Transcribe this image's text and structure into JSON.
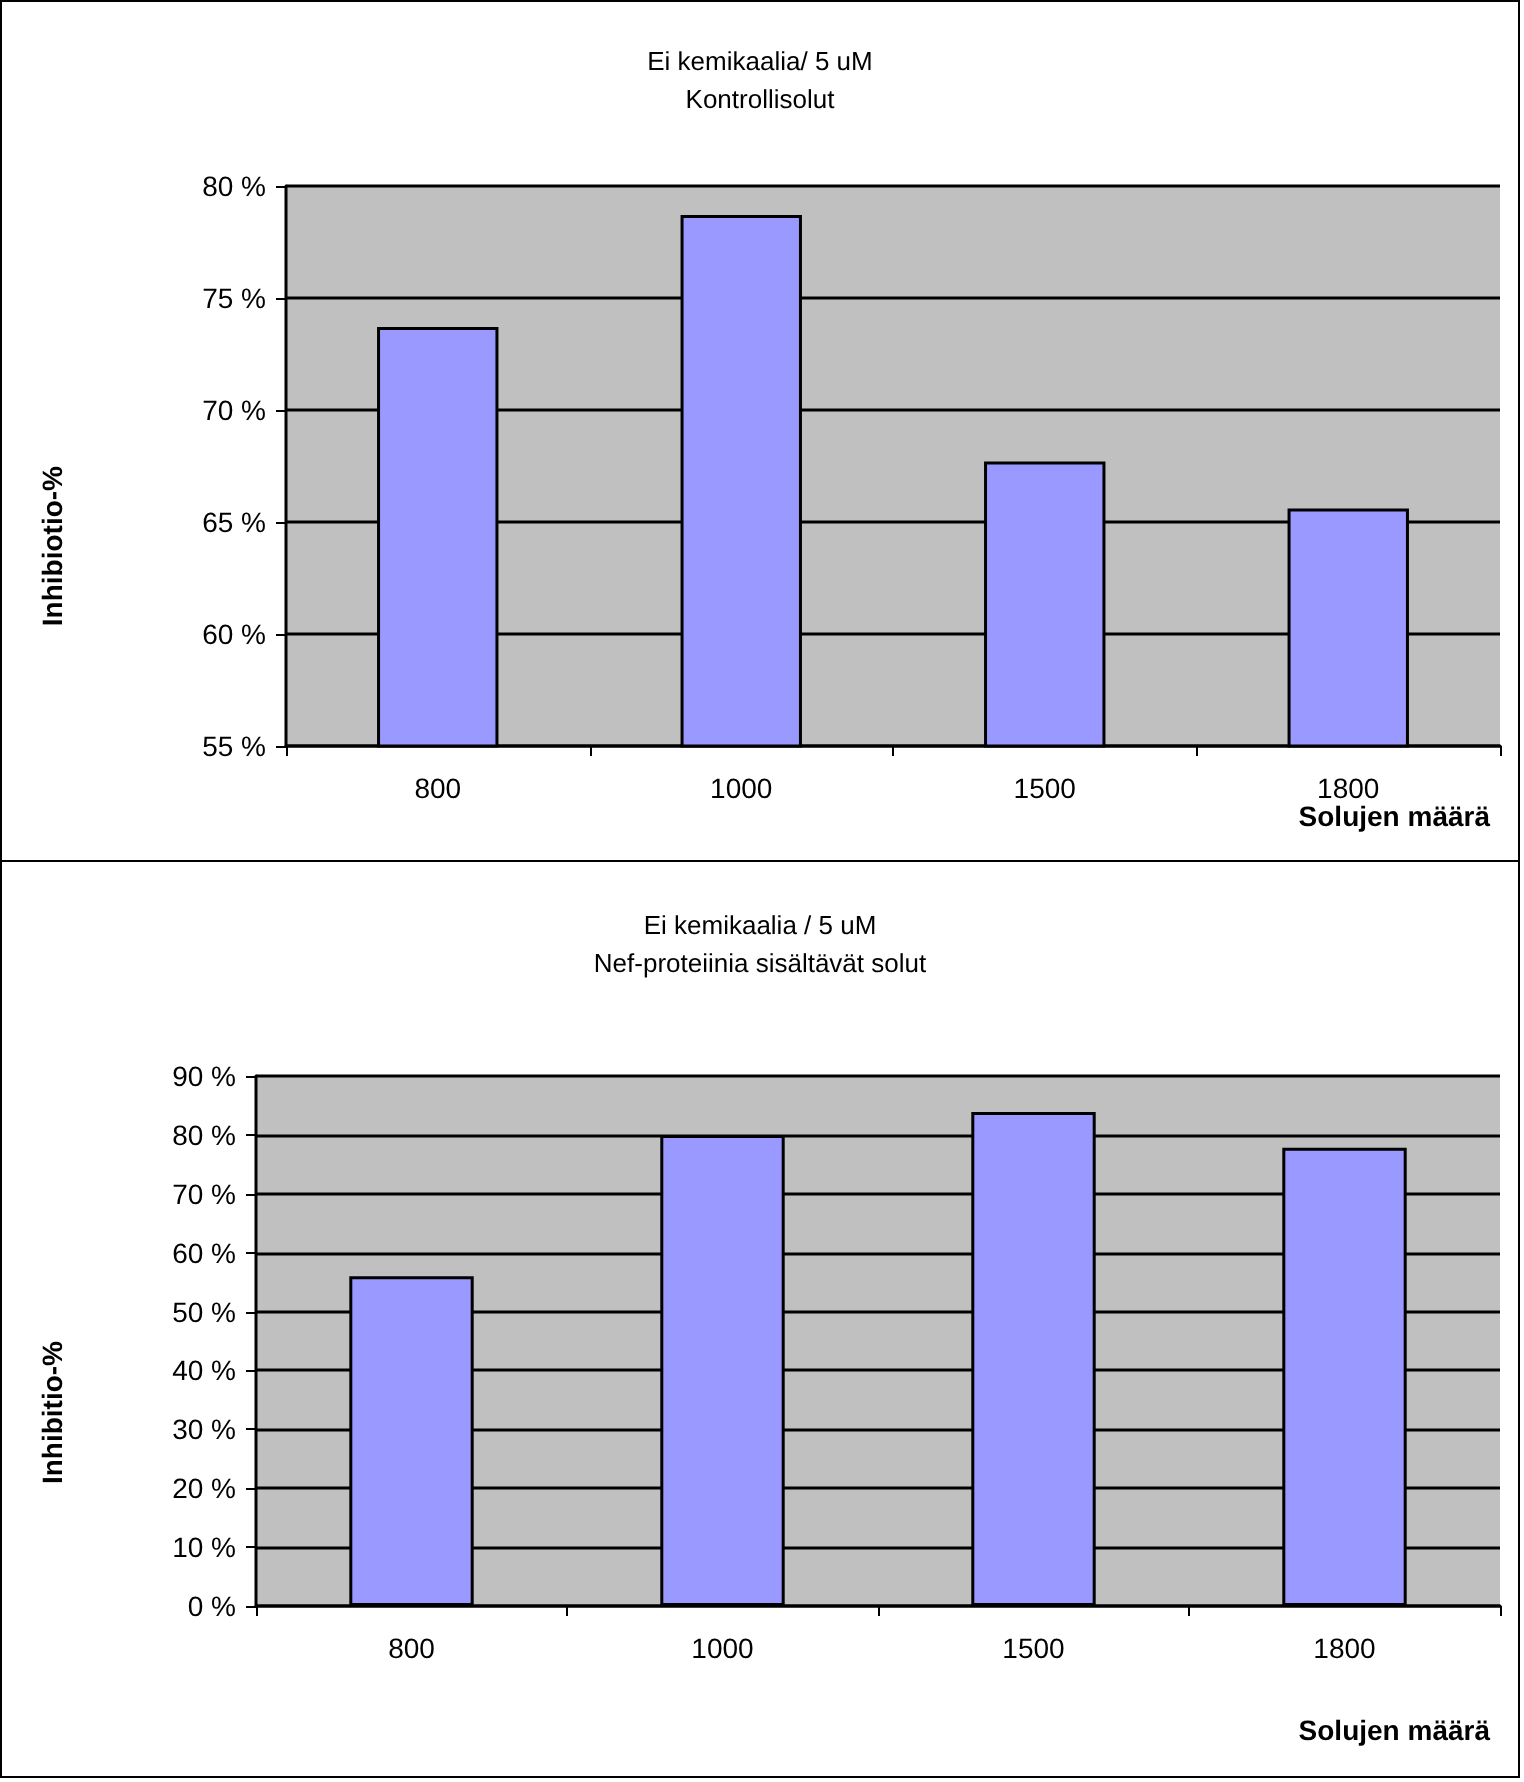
{
  "chart_data": [
    {
      "type": "bar",
      "title": "Ei kemikaalia/ 5 uM",
      "subtitle": "Kontrollisolut",
      "xlabel": "Solujen määrä",
      "ylabel": "Inhibiotio-%",
      "categories": [
        "800",
        "1000",
        "1500",
        "1800"
      ],
      "values": [
        73.7,
        78.7,
        67.7,
        65.6
      ],
      "color": "#9999ff",
      "ylim": [
        55,
        80
      ],
      "yticks": [
        {
          "value": 55,
          "label": "55 %"
        },
        {
          "value": 60,
          "label": "60 %"
        },
        {
          "value": 65,
          "label": "65 %"
        },
        {
          "value": 70,
          "label": "70 %"
        },
        {
          "value": 75,
          "label": "75 %"
        },
        {
          "value": 80,
          "label": "80 %"
        }
      ],
      "grid": "y"
    },
    {
      "type": "bar",
      "title": "Ei kemikaalia / 5 uM",
      "subtitle": "Nef-proteiinia sisältävät solut",
      "xlabel": "Solujen määrä",
      "ylabel": "Inhibitio-%",
      "categories": [
        "800",
        "1000",
        "1500",
        "1800"
      ],
      "values": [
        56.0,
        80.0,
        83.9,
        77.8
      ],
      "color": "#9999ff",
      "ylim": [
        0,
        90
      ],
      "yticks": [
        {
          "value": 0,
          "label": "0 %"
        },
        {
          "value": 10,
          "label": "10 %"
        },
        {
          "value": 20,
          "label": "20 %"
        },
        {
          "value": 30,
          "label": "30 %"
        },
        {
          "value": 40,
          "label": "40 %"
        },
        {
          "value": 50,
          "label": "50 %"
        },
        {
          "value": 60,
          "label": "60 %"
        },
        {
          "value": 70,
          "label": "70 %"
        },
        {
          "value": 80,
          "label": "80 %"
        },
        {
          "value": 90,
          "label": "90 %"
        }
      ],
      "grid": "y"
    }
  ]
}
